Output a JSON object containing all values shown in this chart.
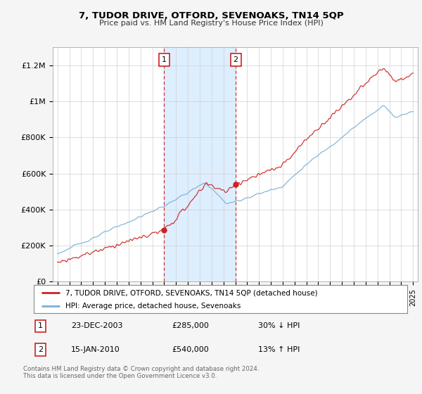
{
  "title": "7, TUDOR DRIVE, OTFORD, SEVENOAKS, TN14 5QP",
  "subtitle": "Price paid vs. HM Land Registry's House Price Index (HPI)",
  "ylabel_ticks": [
    "£0",
    "£200K",
    "£400K",
    "£600K",
    "£800K",
    "£1M",
    "£1.2M"
  ],
  "ytick_values": [
    0,
    200000,
    400000,
    600000,
    800000,
    1000000,
    1200000
  ],
  "ylim": [
    0,
    1300000
  ],
  "xlim": [
    1994.6,
    2025.4
  ],
  "red_line_color": "#cc2222",
  "blue_line_color": "#7aafd4",
  "shaded_color": "#ddeeff",
  "marker1_x": 2004.0,
  "marker1_y": 285000,
  "marker2_x": 2010.04,
  "marker2_y": 540000,
  "marker1_label": "1",
  "marker2_label": "2",
  "marker1_date": "23-DEC-2003",
  "marker1_price": "£285,000",
  "marker1_pct": "30% ↓ HPI",
  "marker2_date": "15-JAN-2010",
  "marker2_price": "£540,000",
  "marker2_pct": "13% ↑ HPI",
  "legend_line1": "7, TUDOR DRIVE, OTFORD, SEVENOAKS, TN14 5QP (detached house)",
  "legend_line2": "HPI: Average price, detached house, Sevenoaks",
  "footnote": "Contains HM Land Registry data © Crown copyright and database right 2024.\nThis data is licensed under the Open Government Licence v3.0.",
  "bg_color": "#f5f5f5",
  "plot_bg_color": "#ffffff"
}
